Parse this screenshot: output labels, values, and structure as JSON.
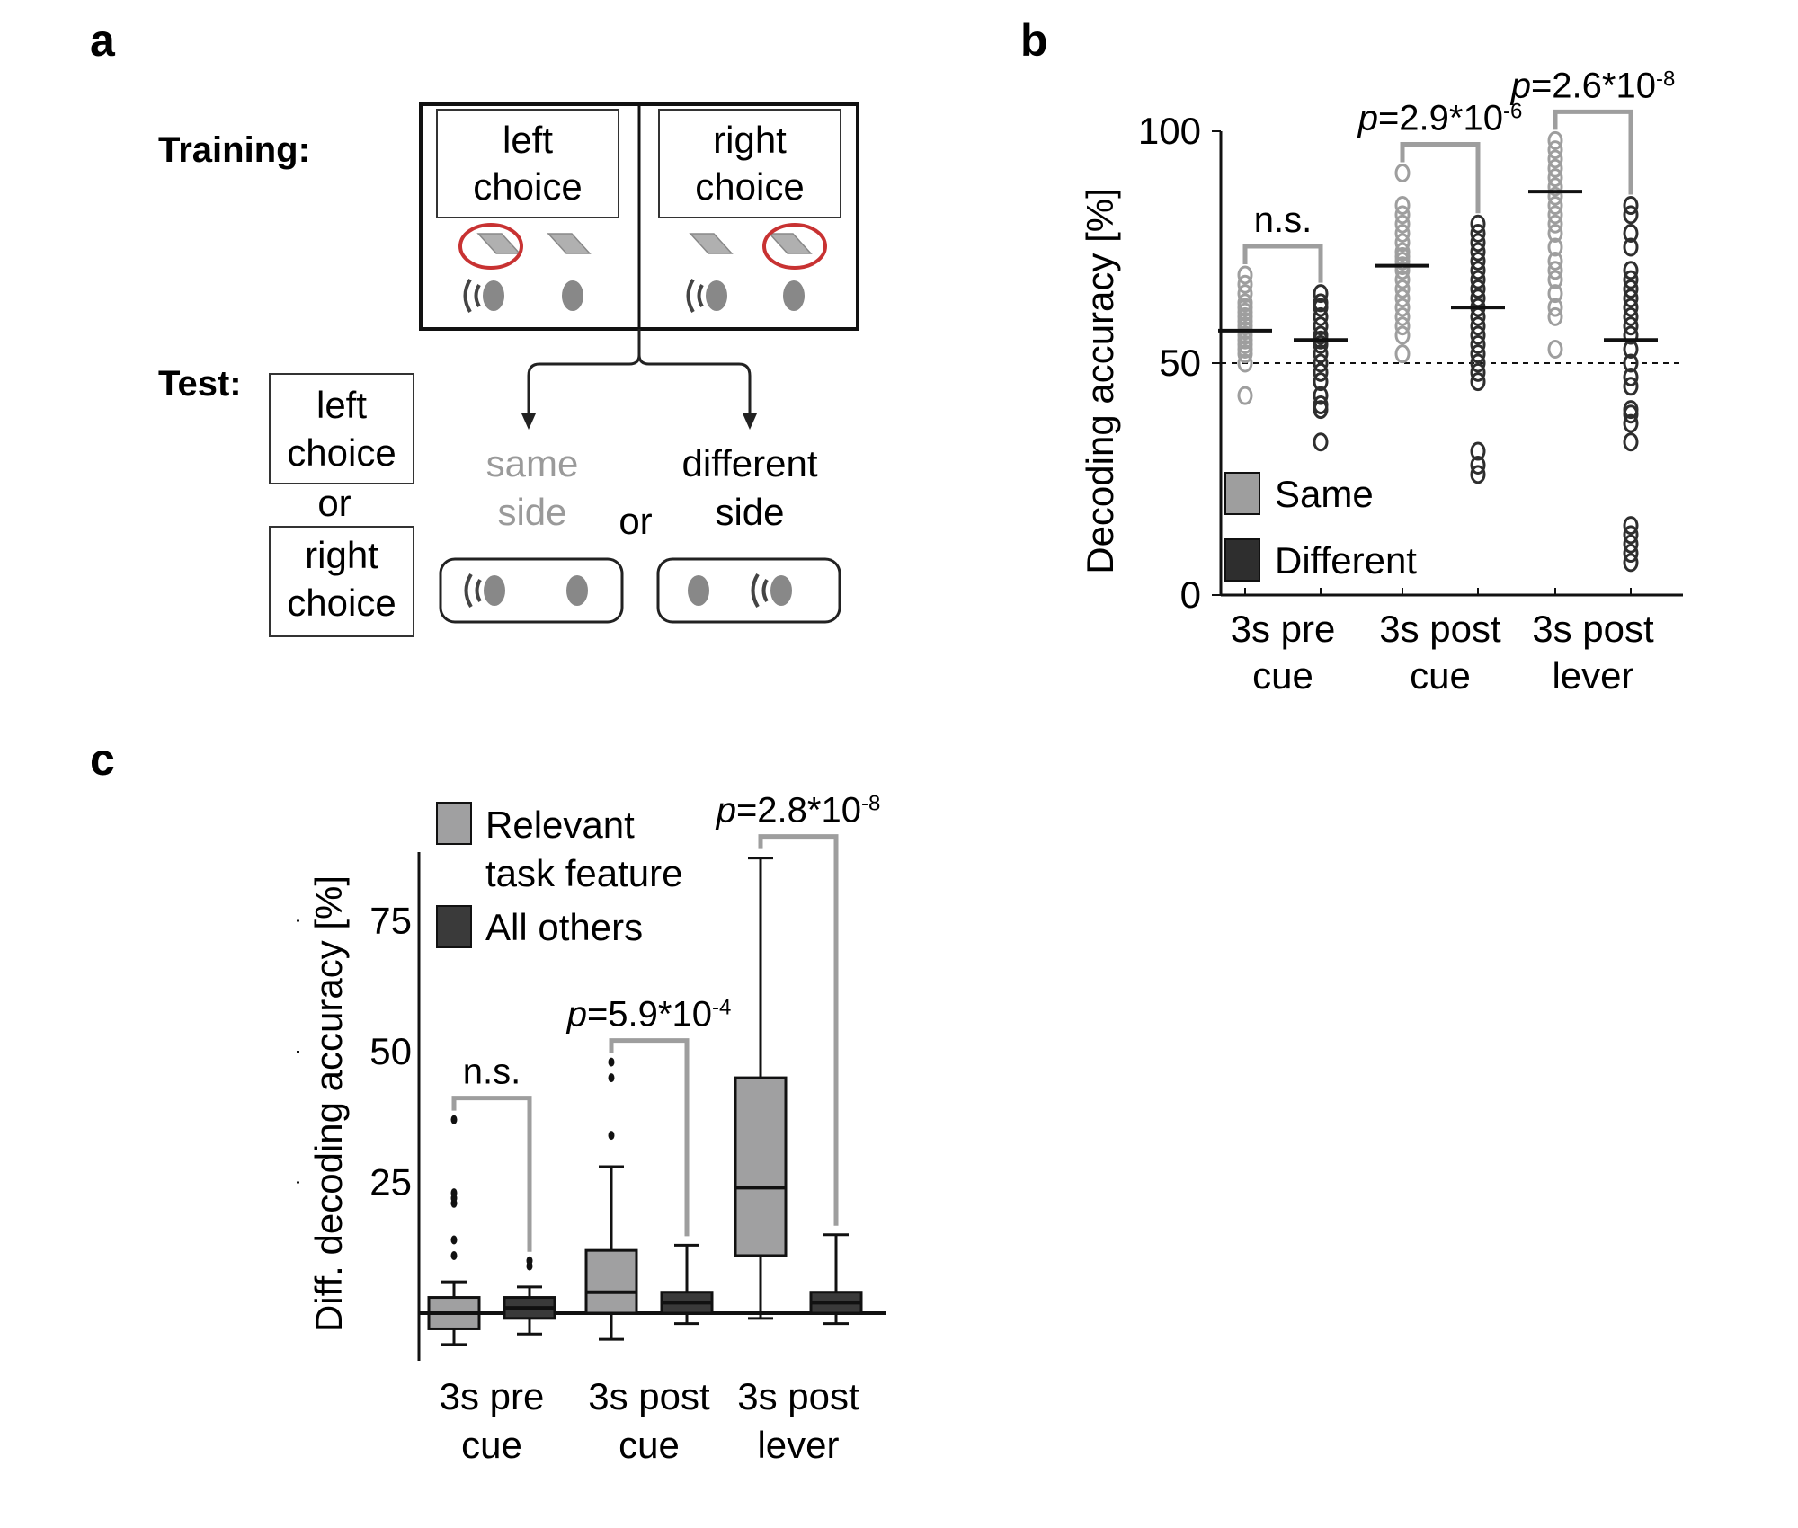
{
  "panels": {
    "a": "a",
    "b": "b",
    "c": "c"
  },
  "schematic": {
    "training_label": "Training:",
    "test_label": "Test:",
    "left_choice_1": "left",
    "left_choice_2": "choice",
    "right_choice_1": "right",
    "right_choice_2": "choice",
    "or": "or",
    "same_1": "same",
    "same_2": "side",
    "different_1": "different",
    "different_2": "side",
    "colors": {
      "circle": "#c83232",
      "lever": "#aaaaaa",
      "speaker": "#555555",
      "same_text": "#9a9a9a"
    }
  },
  "chart_data": [
    {
      "type": "scatter",
      "panel": "b",
      "ylabel": "Decoding accuracy [%]",
      "ylim": [
        0,
        100
      ],
      "yticks": [
        "0",
        "50",
        "100"
      ],
      "chance_level": 50,
      "categories": [
        [
          "3s pre",
          "cue"
        ],
        [
          "3s post",
          "cue"
        ],
        [
          "3s post",
          "lever"
        ]
      ],
      "series": [
        {
          "name": "Same",
          "color": "#9e9e9e",
          "mean": [
            57,
            71,
            87
          ],
          "values": [
            [
              43,
              50,
              52,
              53,
              54,
              55,
              56,
              57,
              58,
              59,
              60,
              61,
              62,
              63,
              65,
              67,
              69
            ],
            [
              52,
              56,
              58,
              60,
              62,
              64,
              66,
              68,
              70,
              71,
              72,
              73,
              74,
              76,
              78,
              80,
              82,
              84,
              91
            ],
            [
              53,
              60,
              62,
              65,
              68,
              70,
              72,
              75,
              78,
              80,
              82,
              84,
              86,
              88,
              90,
              92,
              94,
              96,
              98
            ]
          ]
        },
        {
          "name": "Different",
          "color": "#2e2e2e",
          "mean": [
            55,
            62,
            55
          ],
          "values": [
            [
              33,
              40,
              41,
              43,
              46,
              48,
              50,
              52,
              54,
              55,
              56,
              58,
              60,
              62,
              63,
              65
            ],
            [
              26,
              28,
              31,
              46,
              48,
              50,
              52,
              54,
              56,
              58,
              60,
              62,
              64,
              66,
              68,
              70,
              72,
              74,
              76,
              78,
              80
            ],
            [
              7,
              9,
              11,
              13,
              15,
              33,
              37,
              39,
              40,
              45,
              47,
              50,
              53,
              56,
              58,
              60,
              62,
              64,
              66,
              68,
              70,
              75,
              78,
              82,
              84
            ]
          ]
        }
      ],
      "comparisons": [
        {
          "label": "n.s.",
          "italic": "",
          "base": "",
          "exponent": ""
        },
        {
          "label": "",
          "italic": "p",
          "base": "=2.9*10",
          "exponent": "-6"
        },
        {
          "label": "",
          "italic": "p",
          "base": "=2.6*10",
          "exponent": "-8"
        }
      ]
    },
    {
      "type": "box",
      "panel": "c",
      "ylabel": "Diff. decoding accuracy [%]",
      "ylim": [
        -10,
        90
      ],
      "yticks": [
        "25",
        "50",
        "75"
      ],
      "categories": [
        [
          "3s pre",
          "cue"
        ],
        [
          "3s post",
          "cue"
        ],
        [
          "3s post",
          "lever"
        ]
      ],
      "series": [
        {
          "name": "Relevant task feature",
          "color": "#a0a0a1",
          "boxes": [
            {
              "whislo": -6,
              "q1": -3,
              "med": 0,
              "q3": 3,
              "whishi": 6,
              "fliers": [
                11,
                14,
                21,
                22,
                23,
                37
              ]
            },
            {
              "whislo": -5,
              "q1": 0,
              "med": 4,
              "q3": 12,
              "whishi": 28,
              "fliers": [
                34,
                45,
                48
              ]
            },
            {
              "whislo": -1,
              "q1": 11,
              "med": 24,
              "q3": 45,
              "whishi": 87,
              "fliers": []
            }
          ]
        },
        {
          "name": "All others",
          "color": "#3a3a3a",
          "boxes": [
            {
              "whislo": -4,
              "q1": -1,
              "med": 1,
              "q3": 3,
              "whishi": 5,
              "fliers": [
                9,
                10
              ]
            },
            {
              "whislo": -2,
              "q1": 0,
              "med": 2,
              "q3": 4,
              "whishi": 13,
              "fliers": []
            },
            {
              "whislo": -2,
              "q1": 0,
              "med": 2,
              "q3": 4,
              "whishi": 15,
              "fliers": []
            }
          ]
        }
      ],
      "comparisons": [
        {
          "label": "n.s.",
          "italic": "",
          "base": "",
          "exponent": ""
        },
        {
          "label": "",
          "italic": "p",
          "base": "=5.9*10",
          "exponent": "-4"
        },
        {
          "label": "",
          "italic": "p",
          "base": "=2.8*10",
          "exponent": "-8"
        }
      ]
    }
  ]
}
